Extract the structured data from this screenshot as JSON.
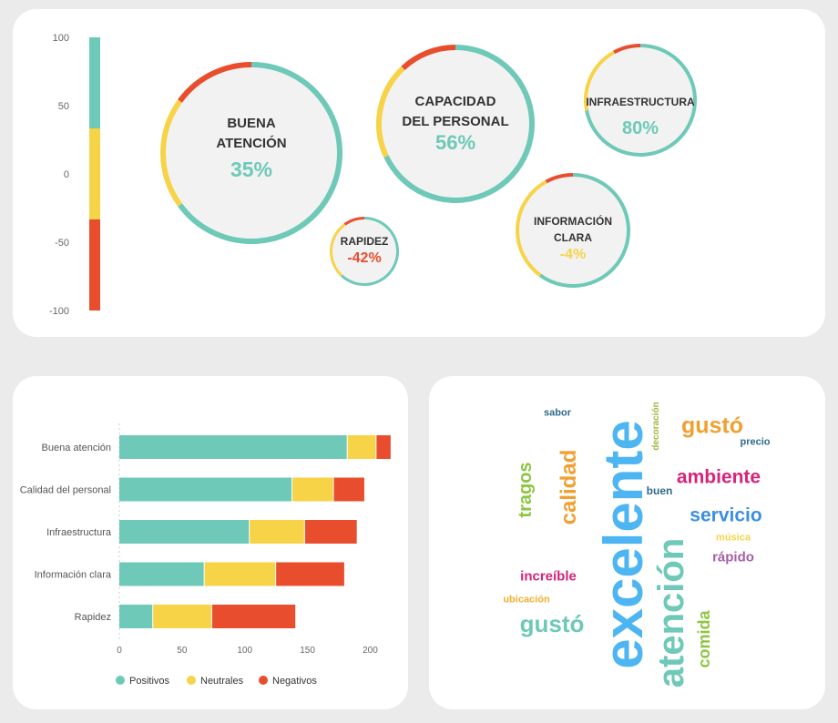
{
  "colors": {
    "positive": "#6ec9b8",
    "neutral": "#f7d348",
    "negative": "#e84e2e",
    "bubble_fill": "#f2f2f2",
    "text_dark": "#333333",
    "axis_text": "#666666"
  },
  "chart_data": [
    {
      "type": "bubble",
      "scale": {
        "ticks": [
          "100",
          "50",
          "0",
          "-50",
          "-100"
        ],
        "range": [
          -100,
          100
        ]
      },
      "bubbles": [
        {
          "label_lines": [
            "BUENA",
            "ATENCIÓN"
          ],
          "value": 35,
          "display": "35%",
          "positive": 0.65,
          "neutral": 0.2,
          "negative": 0.15
        },
        {
          "label_lines": [
            "CAPACIDAD",
            "DEL PERSONAL"
          ],
          "value": 56,
          "display": "56%",
          "positive": 0.68,
          "neutral": 0.2,
          "negative": 0.12
        },
        {
          "label_lines": [
            "INFRAESTRUCTURA"
          ],
          "value": 80,
          "display": "80%",
          "positive": 0.72,
          "neutral": 0.2,
          "negative": 0.08
        },
        {
          "label_lines": [
            "INFORMACIÓN",
            "CLARA"
          ],
          "value": -4,
          "display": "-4%",
          "positive": 0.6,
          "neutral": 0.32,
          "negative": 0.08
        },
        {
          "label_lines": [
            "RAPIDEZ"
          ],
          "value": -42,
          "display": "-42%",
          "positive": 0.62,
          "neutral": 0.28,
          "negative": 0.1
        }
      ]
    },
    {
      "type": "bar",
      "orientation": "horizontal",
      "stacked": true,
      "categories": [
        "Buena atención",
        "Calidad del personal",
        "Infraestructura",
        "Información clara",
        "Rapidez"
      ],
      "series": [
        {
          "name": "Positivos",
          "values": [
            182,
            138,
            104,
            68,
            27
          ]
        },
        {
          "name": "Neutrales",
          "values": [
            23,
            33,
            44,
            57,
            47
          ]
        },
        {
          "name": "Negativos",
          "values": [
            12,
            25,
            42,
            55,
            67
          ]
        }
      ],
      "xlim": [
        0,
        220
      ],
      "xticks": [
        0,
        50,
        100,
        150,
        200
      ],
      "legend": "bottom"
    },
    {
      "type": "wordcloud",
      "words": [
        {
          "text": "excelente",
          "color": "#4db6f2"
        },
        {
          "text": "atención",
          "color": "#6ec9b8"
        },
        {
          "text": "calidad",
          "color": "#f0a030"
        },
        {
          "text": "tragos",
          "color": "#8cc63f"
        },
        {
          "text": "gustó",
          "color": "#f0a030"
        },
        {
          "text": "ambiente",
          "color": "#d6237a"
        },
        {
          "text": "servicio",
          "color": "#3b8fe0"
        },
        {
          "text": "gustó",
          "color": "#6ec9b8"
        },
        {
          "text": "comida",
          "color": "#8cc63f"
        },
        {
          "text": "increíble",
          "color": "#d6237a"
        },
        {
          "text": "rápido",
          "color": "#a55ea8"
        },
        {
          "text": "sabor",
          "color": "#2e6a8a"
        },
        {
          "text": "decoración",
          "color": "#a0b83f"
        },
        {
          "text": "precio",
          "color": "#2e6a8a"
        },
        {
          "text": "buen",
          "color": "#2e6a8a"
        },
        {
          "text": "música",
          "color": "#f7d348"
        },
        {
          "text": "ubicación",
          "color": "#f0b030"
        }
      ]
    }
  ]
}
